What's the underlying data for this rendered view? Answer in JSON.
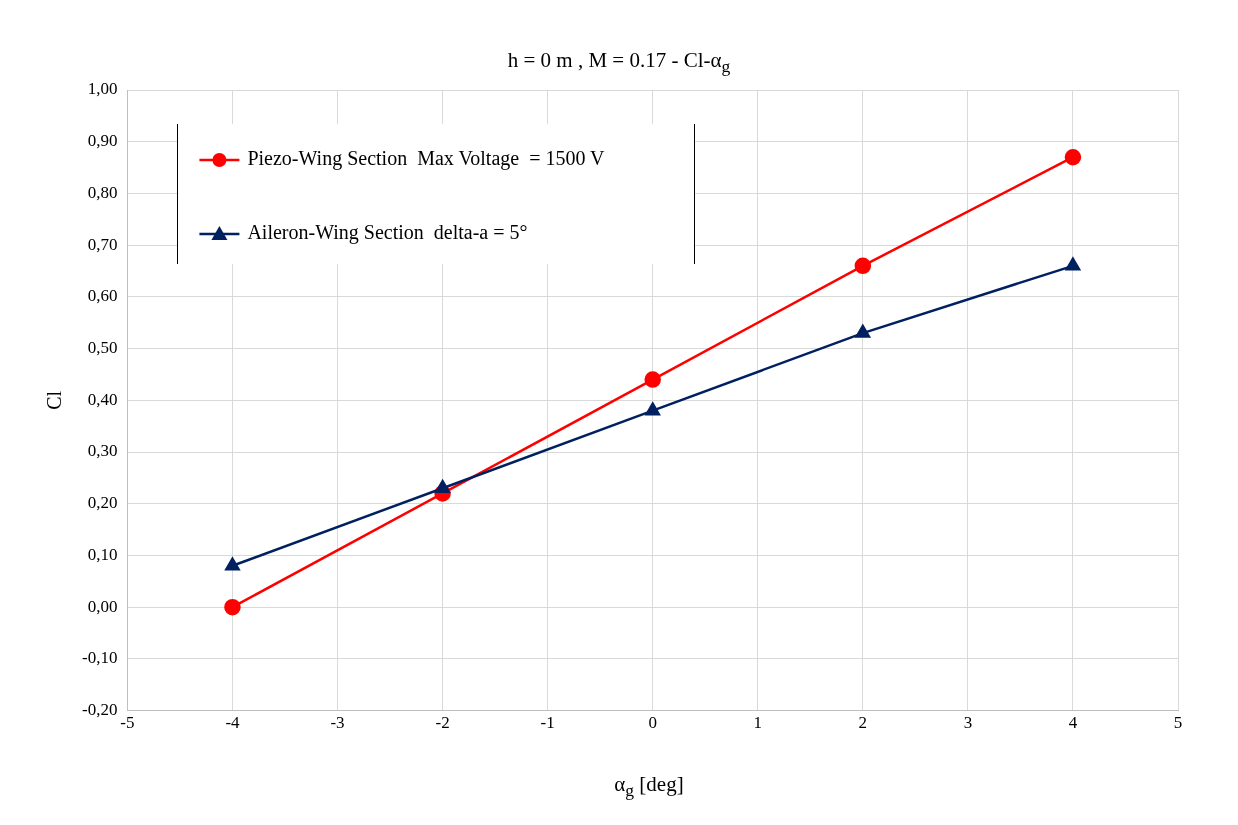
{
  "chart_data": {
    "type": "line",
    "title": "h = 0 m , M = 0.17  - Cl-α$_{g}$",
    "xlabel": "α$_{g}$ [deg]",
    "ylabel": "Cl",
    "x": [
      -4,
      -2,
      0,
      2,
      4
    ],
    "series": [
      {
        "name": "Piezo-Wing Section  Max Voltage  = 1500 V",
        "color": "#ff0000",
        "marker": "circle",
        "values": [
          0.0,
          0.22,
          0.44,
          0.66,
          0.87
        ]
      },
      {
        "name": "Aileron-Wing Section  delta-a = 5°",
        "color": "#002060",
        "marker": "triangle",
        "values": [
          0.08,
          0.23,
          0.38,
          0.53,
          0.66
        ]
      }
    ],
    "xlim": [
      -5,
      5
    ],
    "xticks": [
      -5,
      -4,
      -3,
      -2,
      -1,
      0,
      1,
      2,
      3,
      4,
      5
    ],
    "ylim": [
      -0.2,
      1.0
    ],
    "yticks": [
      {
        "value": -0.2,
        "label": "-0,20"
      },
      {
        "value": -0.1,
        "label": "-0,10"
      },
      {
        "value": 0,
        "label": "0,00"
      },
      {
        "value": 0.1,
        "label": "0,10"
      },
      {
        "value": 0.2,
        "label": "0,20"
      },
      {
        "value": 0.3,
        "label": "0,30"
      },
      {
        "value": 0.4,
        "label": "0,40"
      },
      {
        "value": 0.5,
        "label": "0,50"
      },
      {
        "value": 0.6,
        "label": "0,60"
      },
      {
        "value": 0.7,
        "label": "0,70"
      },
      {
        "value": 0.8,
        "label": "0,80"
      },
      {
        "value": 0.9,
        "label": "0,90"
      },
      {
        "value": 1.0,
        "label": "1,00"
      }
    ],
    "grid": true,
    "legend": "top left",
    "line_style": "solid"
  }
}
